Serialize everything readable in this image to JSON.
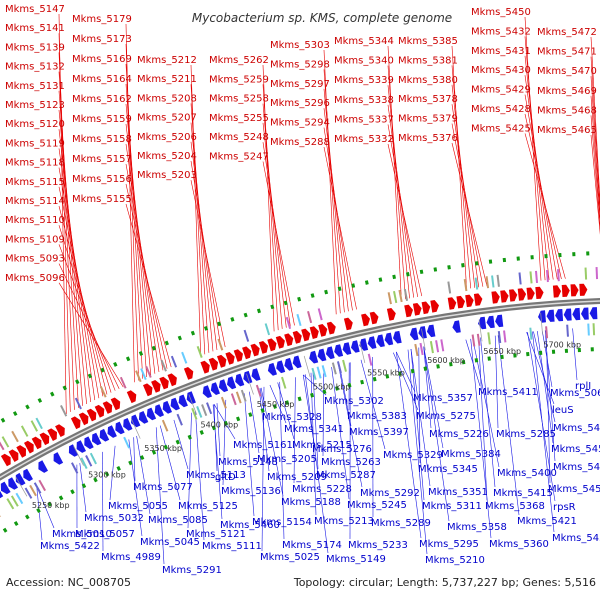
{
  "title": "Mycobacterium sp. KMS, complete genome",
  "footer": {
    "accession": "Accession: NC_008705",
    "summary": "Topology: circular; Length: 5,737,227 bp; Genes: 5,516"
  },
  "colors": {
    "positive_strand": "#e60000",
    "negative_strand": "#1a1ae6",
    "positive_label": "#cc0000",
    "negative_label": "#0000cc",
    "backbone": "#777777",
    "tick_marker": "#119911"
  },
  "ticks": [
    "5250 kbp",
    "5300 kbp",
    "5350 kbp",
    "5400 kbp",
    "5450 kbp",
    "5500 kbp",
    "5550 kbp",
    "5600 kbp",
    "5650 kbp",
    "5700 kbp"
  ],
  "positive_genes": [
    "Mkms_5147",
    "Mkms_5141",
    "Mkms_5139",
    "Mkms_5132",
    "Mkms_5131",
    "Mkms_5123",
    "Mkms_5120",
    "Mkms_5119",
    "Mkms_5118",
    "Mkms_5115",
    "Mkms_5114",
    "Mkms_5110",
    "Mkms_5109",
    "Mkms_5093",
    "Mkms_5096",
    "Mkms_5179",
    "Mkms_5173",
    "Mkms_5169",
    "Mkms_5164",
    "Mkms_5162",
    "Mkms_5159",
    "Mkms_5158",
    "Mkms_5157",
    "Mkms_5156",
    "Mkms_5155",
    "Mkms_5212",
    "Mkms_5211",
    "Mkms_5208",
    "Mkms_5207",
    "Mkms_5206",
    "Mkms_5204",
    "Mkms_5203",
    "Mkms_5262",
    "Mkms_5259",
    "Mkms_5258",
    "Mkms_5255",
    "Mkms_5248",
    "Mkms_5247",
    "Mkms_5303",
    "Mkms_5298",
    "Mkms_5297",
    "Mkms_5296",
    "Mkms_5294",
    "Mkms_5288",
    "Mkms_5344",
    "Mkms_5340",
    "Mkms_5339",
    "Mkms_5338",
    "Mkms_5337",
    "Mkms_5332",
    "Mkms_5385",
    "Mkms_5381",
    "Mkms_5380",
    "Mkms_5378",
    "Mkms_5379",
    "Mkms_5376",
    "Mkms_5450",
    "Mkms_5432",
    "Mkms_5431",
    "Mkms_5430",
    "Mkms_5429",
    "Mkms_5428",
    "Mkms_5425",
    "Mkms_5472",
    "Mkms_5471",
    "Mkms_5470",
    "Mkms_5469",
    "Mkms_5468",
    "Mkms_5465"
  ],
  "negative_genes": [
    "Mkms_5302",
    "Mkms_5357",
    "Mkms_5411",
    "Mkms_5328",
    "Mkms_5383",
    "Mkms_5275",
    "Mkms_5341",
    "Mkms_5397",
    "Mkms_5226",
    "Mkms_5285",
    "Mkms_5161",
    "Mkms_5215",
    "Mkms_5276",
    "Mkms_5148",
    "Mkms_5263",
    "Mkms_5329",
    "Mkms_5384",
    "Mkms_5205",
    "Mkms_5287",
    "Mkms_5345",
    "Mkms_5400",
    "Mkms_5113",
    "Mkms_5209",
    "Mkms_5077",
    "Mkms_5228",
    "Mkms_5292",
    "Mkms_5351",
    "Mkms_5415",
    "gltD",
    "Mkms_5136",
    "Mkms_5188",
    "Mkms_5245",
    "Mkms_5311",
    "Mkms_5368",
    "Mkms_5055",
    "Mkms_5125",
    "Mkms_5085",
    "Mkms_5154",
    "Mkms_5213",
    "Mkms_5289",
    "Mkms_5358",
    "Mkms_5421",
    "Mkms_5032",
    "Mkms_5057",
    "Mkms_5121",
    "Mkms_5010",
    "Mkms_5045",
    "Mkms_5111",
    "Mkms_5174",
    "Mkms_5233",
    "Mkms_5295",
    "Mkms_5360",
    "Mkms_5422",
    "Mkms_4989",
    "Mkms_5025",
    "Mkms_5149",
    "Mkms_5210",
    "Mkms_5291",
    "Mkms_5069",
    "rplI",
    "leuS",
    "Mkms_5444",
    "Mkms_5453",
    "Mkms_5445",
    "Mkms_5455",
    "rpsR",
    "Mkms_5458",
    "Mkms_5460"
  ]
}
